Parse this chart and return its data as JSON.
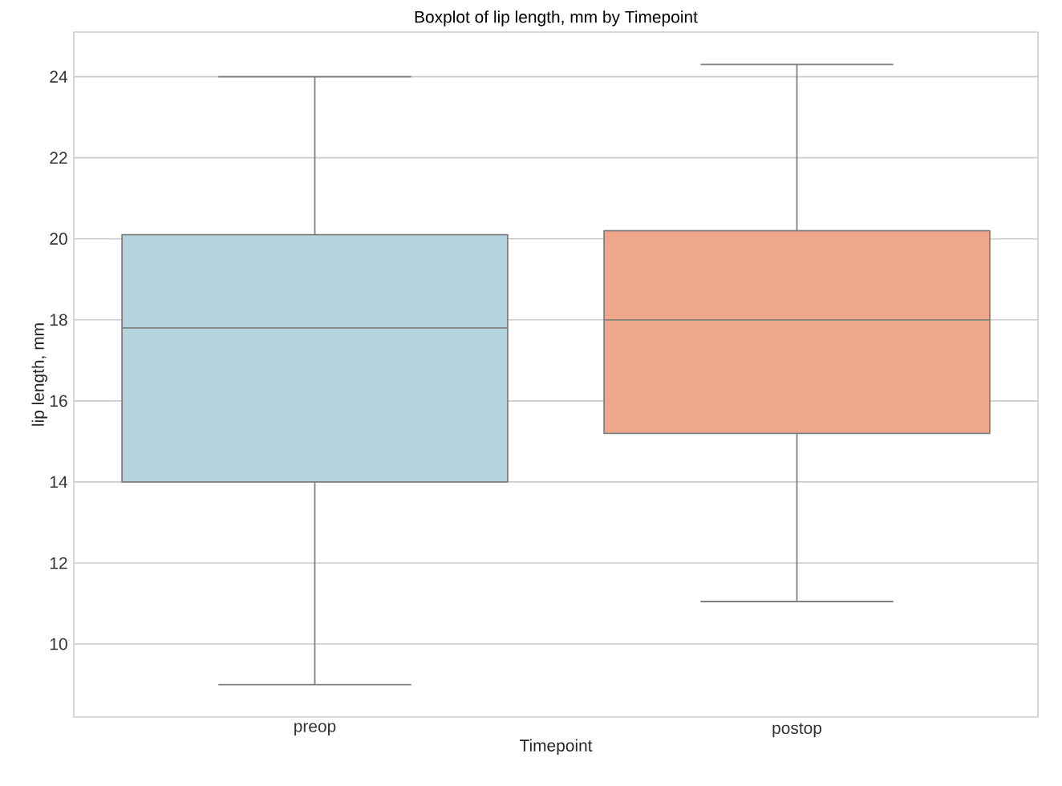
{
  "chart_data": {
    "type": "box",
    "title": "Boxplot of lip length, mm by Timepoint",
    "xlabel": "Timepoint",
    "ylabel": "lip length, mm",
    "categories": [
      "preop",
      "postop"
    ],
    "boxes": [
      {
        "low": 9.0,
        "q1": 14.0,
        "median": 17.8,
        "q3": 20.1,
        "high": 24.0
      },
      {
        "low": 11.05,
        "q1": 15.2,
        "median": 18.0,
        "q3": 20.2,
        "high": 24.3
      }
    ],
    "colors": [
      "#b4d4df",
      "#eea78a"
    ],
    "ylim": [
      8.2,
      25.1
    ],
    "yticks": [
      10,
      12,
      14,
      16,
      18,
      20,
      22,
      24
    ],
    "grid": "y"
  }
}
